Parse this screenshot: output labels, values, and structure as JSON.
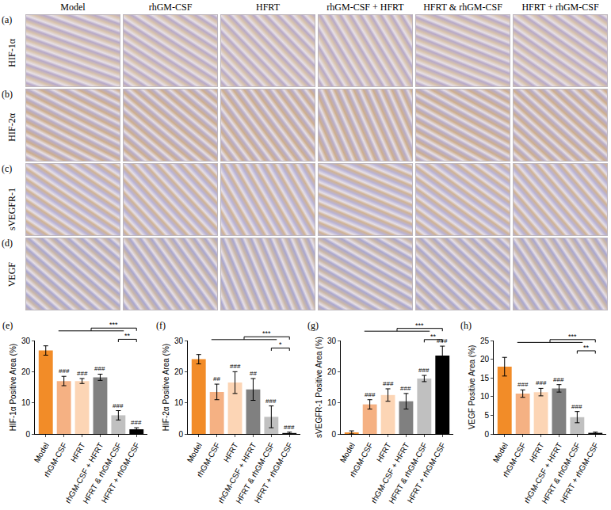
{
  "image_grid": {
    "columns": [
      "Model",
      "rhGM-CSF",
      "HFRT",
      "rhGM-CSF + HFRT",
      "HFRT & rhGM-CSF",
      "HFRT + rhGM-CSF"
    ],
    "rows": [
      {
        "panel": "(a)",
        "label": "HIF-1α"
      },
      {
        "panel": "(b)",
        "label": "HIF-2α"
      },
      {
        "panel": "(c)",
        "label": "sVEGFR-1"
      },
      {
        "panel": "(d)",
        "label": "VEGF"
      }
    ]
  },
  "chart_data": [
    {
      "panel": "(e)",
      "type": "bar",
      "y_label": "HIF-1α Positive Area (%)",
      "categories": [
        "Model",
        "rhGM-CSF",
        "HFRT",
        "rhGM-CSF + HFRT",
        "HFRT & rhGM-CSF",
        "HFRT + rhGM-CSF"
      ],
      "values": [
        26.8,
        17,
        17,
        18.2,
        6,
        1.5
      ],
      "errors": [
        1.5,
        1.5,
        0.8,
        1,
        1.5,
        0.5
      ],
      "colors": [
        "#f28c28",
        "#f5b183",
        "#fcd5b5",
        "#808080",
        "#c0c0c0",
        "#000000"
      ],
      "ylim": [
        0,
        30
      ],
      "yticks": [
        0,
        10,
        20,
        30
      ],
      "annotations": [
        {
          "text": "###",
          "at": "rhGM-CSF"
        },
        {
          "text": "###",
          "at": "HFRT"
        },
        {
          "text": "###",
          "at": "rhGM-CSF + HFRT"
        },
        {
          "text": "###",
          "at": "HFRT & rhGM-CSF"
        },
        {
          "text": "###",
          "at": "HFRT + rhGM-CSF"
        },
        {
          "text": "**",
          "from": [
            "HFRT & rhGM-CSF"
          ],
          "to": "HFRT + rhGM-CSF"
        },
        {
          "text": "***",
          "from": [
            "rhGM-CSF",
            "HFRT",
            "rhGM-CSF + HFRT",
            "HFRT & rhGM-CSF"
          ],
          "to": "HFRT + rhGM-CSF"
        }
      ]
    },
    {
      "panel": "(f)",
      "type": "bar",
      "y_label": "HIF-2α Positive Area (%)",
      "categories": [
        "Model",
        "rhGM-CSF",
        "HFRT",
        "rhGM-CSF + HFRT",
        "HFRT & rhGM-CSF",
        "HFRT + rhGM-CSF"
      ],
      "values": [
        24,
        13.5,
        16.5,
        14.3,
        5.5,
        0.3
      ],
      "errors": [
        1.5,
        2.5,
        3.5,
        3.5,
        3.5,
        0.3
      ],
      "colors": [
        "#f28c28",
        "#f5b183",
        "#fcd5b5",
        "#808080",
        "#c0c0c0",
        "#000000"
      ],
      "ylim": [
        0,
        30
      ],
      "yticks": [
        0,
        10,
        20,
        30
      ],
      "annotations": [
        {
          "text": "##",
          "at": "rhGM-CSF"
        },
        {
          "text": "###",
          "at": "HFRT"
        },
        {
          "text": "##",
          "at": "rhGM-CSF + HFRT"
        },
        {
          "text": "###",
          "at": "HFRT & rhGM-CSF"
        },
        {
          "text": "###",
          "at": "HFRT + rhGM-CSF"
        },
        {
          "text": "*",
          "from": [
            "HFRT & rhGM-CSF"
          ],
          "to": "HFRT + rhGM-CSF"
        },
        {
          "text": "***",
          "from": [
            "rhGM-CSF",
            "HFRT",
            "rhGM-CSF + HFRT",
            "HFRT & rhGM-CSF"
          ],
          "to": "HFRT + rhGM-CSF"
        }
      ]
    },
    {
      "panel": "(g)",
      "type": "bar",
      "y_label": "sVEGFR-1 Positive Area (%)",
      "categories": [
        "Model",
        "rhGM-CSF",
        "HFRT",
        "rhGM-CSF + HFRT",
        "HFRT & rhGM-CSF",
        "HFRT + rhGM-CSF"
      ],
      "values": [
        0.5,
        9.5,
        12.5,
        10.5,
        17.8,
        25.2
      ],
      "errors": [
        0.5,
        1.5,
        2,
        2.5,
        1,
        3
      ],
      "colors": [
        "#f28c28",
        "#f5b183",
        "#fcd5b5",
        "#808080",
        "#c0c0c0",
        "#000000"
      ],
      "ylim": [
        0,
        30
      ],
      "yticks": [
        0,
        10,
        20,
        30
      ],
      "annotations": [
        {
          "text": "###",
          "at": "rhGM-CSF"
        },
        {
          "text": "###",
          "at": "HFRT"
        },
        {
          "text": "###",
          "at": "rhGM-CSF + HFRT"
        },
        {
          "text": "###",
          "at": "HFRT & rhGM-CSF"
        },
        {
          "text": "###",
          "at": "HFRT + rhGM-CSF"
        },
        {
          "text": "**",
          "from": [
            "HFRT & rhGM-CSF"
          ],
          "to": "HFRT + rhGM-CSF"
        },
        {
          "text": "***",
          "from": [
            "rhGM-CSF",
            "HFRT",
            "rhGM-CSF + HFRT",
            "HFRT & rhGM-CSF"
          ],
          "to": "HFRT + rhGM-CSF"
        }
      ]
    },
    {
      "panel": "(h)",
      "type": "bar",
      "y_label": "VEGF Positive Area (%)",
      "categories": [
        "Model",
        "rhGM-CSF",
        "HFRT",
        "rhGM-CSF + HFRT",
        "HFRT & rhGM-CSF",
        "HFRT + rhGM-CSF"
      ],
      "values": [
        18,
        10.8,
        11.2,
        12.2,
        4.5,
        0.3
      ],
      "errors": [
        2.5,
        1,
        1,
        1,
        1.5,
        0.2
      ],
      "colors": [
        "#f28c28",
        "#f5b183",
        "#fcd5b5",
        "#808080",
        "#c0c0c0",
        "#000000"
      ],
      "ylim": [
        0,
        25
      ],
      "yticks": [
        0,
        5,
        10,
        15,
        20,
        25
      ],
      "annotations": [
        {
          "text": "###",
          "at": "rhGM-CSF"
        },
        {
          "text": "###",
          "at": "HFRT"
        },
        {
          "text": "###",
          "at": "rhGM-CSF + HFRT"
        },
        {
          "text": "###",
          "at": "HFRT & rhGM-CSF"
        },
        {
          "text": "**",
          "from": [
            "HFRT & rhGM-CSF"
          ],
          "to": "HFRT + rhGM-CSF"
        },
        {
          "text": "***",
          "from": [
            "rhGM-CSF",
            "HFRT",
            "rhGM-CSF + HFRT",
            "HFRT & rhGM-CSF"
          ],
          "to": "HFRT + rhGM-CSF"
        }
      ]
    }
  ]
}
